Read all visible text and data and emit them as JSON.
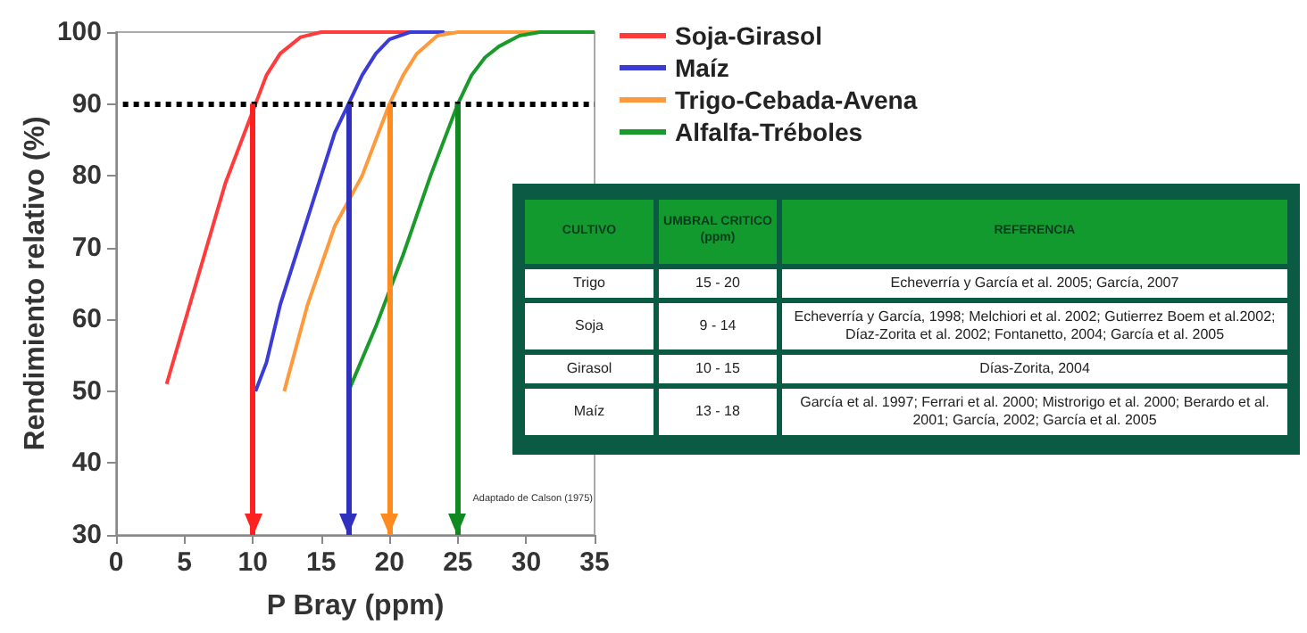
{
  "chart_data": [
    {
      "type": "line",
      "xlabel": "P Bray (ppm)",
      "ylabel": "Rendimiento relativo (%)",
      "xlim": [
        0,
        35
      ],
      "xticks": [
        0,
        5,
        10,
        15,
        20,
        25,
        30,
        35
      ],
      "ylim": [
        30,
        100
      ],
      "yticks": [
        30,
        40,
        50,
        60,
        70,
        80,
        90,
        100
      ],
      "grid": false,
      "legend": "top right",
      "marker": "none",
      "line_style": "solid",
      "series": [
        {
          "name": "Soja-Girasol",
          "color": "#ff3b3b",
          "x": [
            3.7,
            6,
            8,
            10,
            11,
            12,
            13.5,
            15,
            24
          ],
          "values": [
            51,
            66,
            79,
            89,
            94,
            97,
            99.3,
            100,
            100
          ]
        },
        {
          "name": "Maíz",
          "color": "#3b3bd6",
          "x": [
            10.2,
            11,
            12,
            14,
            16,
            17,
            18,
            19,
            20,
            21.5,
            24
          ],
          "values": [
            50,
            54,
            62,
            74,
            86,
            90,
            94,
            97,
            99,
            100,
            100
          ]
        },
        {
          "name": "Trigo-Cebada-Avena",
          "color": "#ff9a3c",
          "x": [
            12.3,
            14,
            16,
            18,
            20,
            21,
            22,
            23.5,
            25,
            31
          ],
          "values": [
            50,
            62,
            73,
            80,
            90,
            94,
            97,
            99.5,
            100,
            100
          ]
        },
        {
          "name": "Alfalfa-Tréboles",
          "color": "#1a9a2a",
          "x": [
            17,
            19,
            21,
            23,
            25,
            26,
            27,
            28,
            29.5,
            31,
            35
          ],
          "values": [
            50,
            59,
            69,
            80,
            90,
            94,
            96.5,
            98,
            99.5,
            100,
            100
          ]
        }
      ],
      "ref_lines": [
        {
          "axis": "y",
          "value": 90,
          "color": "#000000",
          "line_style": "dotted"
        },
        {
          "axis": "x",
          "value": 10,
          "color": "#ff2020",
          "line_style": "solid"
        },
        {
          "axis": "x",
          "value": 17,
          "color": "#3030c0",
          "line_style": "solid"
        },
        {
          "axis": "x",
          "value": 20,
          "color": "#ff8a20",
          "line_style": "solid"
        },
        {
          "axis": "x",
          "value": 25,
          "color": "#108a20",
          "line_style": "solid"
        }
      ],
      "annotations": [
        "Adaptado de Calson (1975)"
      ]
    },
    {
      "type": "other",
      "annotations": [
        "CULTIVO",
        "UMBRAL CRITICO (ppm)",
        "REFERENCIA",
        "Trigo",
        "15 - 20",
        "Echeverría y García et al. 2005; García, 2007",
        "Soja",
        "9 - 14",
        "Echeverría y García, 1998; Melchiori et al. 2002; Gutierrez Boem et al.2002; Díaz-Zorita et al. 2002; Fontanetto, 2004; García et al. 2005",
        "Girasol",
        "10 - 15",
        "Días-Zorita, 2004",
        "Maíz",
        "13 - 18",
        "García et al. 1997; Ferrari et al. 2000; Mistrorigo et al. 2000; Berardo et al. 2001; García, 2002; García et al. 2005"
      ]
    }
  ]
}
